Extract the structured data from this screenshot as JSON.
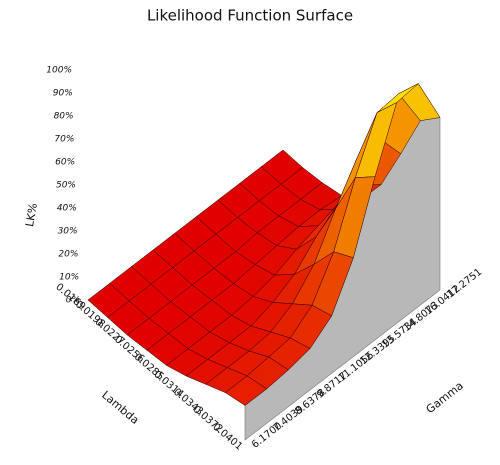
{
  "chart_data": {
    "type": "surface",
    "title": "Likelihood Function Surface",
    "x_label": "Lambda",
    "y_label": "Gamma",
    "z_label": "LK%",
    "x": [
      0.0169,
      0.0198,
      0.0227,
      0.0256,
      0.0285,
      0.0314,
      0.0343,
      0.0372,
      0.0401
    ],
    "y": [
      {
        "value": 6.17,
        "label": "6.1700"
      },
      7.4039,
      8.6378,
      9.8717,
      11.1056,
      12.3395,
      13.5734,
      14.8073,
      16.0412,
      17.2751
    ],
    "xlim": [
      0.0169,
      0.0401
    ],
    "ylim": [
      6.17,
      17.2751
    ],
    "zlim": [
      0,
      100
    ],
    "zticks": [
      {
        "value": 0,
        "label": "0%"
      },
      {
        "value": 10,
        "label": "10%"
      },
      {
        "value": 20,
        "label": "20%"
      },
      {
        "value": 30,
        "label": "30%"
      },
      {
        "value": 40,
        "label": "40%"
      },
      {
        "value": 50,
        "label": "50%"
      },
      {
        "value": 60,
        "label": "60%"
      },
      {
        "value": 70,
        "label": "70%"
      },
      {
        "value": 80,
        "label": "80%"
      },
      {
        "value": 90,
        "label": "90%"
      },
      {
        "value": 100,
        "label": "100%"
      }
    ],
    "z": [
      [
        0,
        0,
        0,
        0,
        0,
        0,
        0,
        0,
        0,
        0
      ],
      [
        0,
        0,
        0,
        0,
        0,
        0,
        0,
        0,
        0,
        0
      ],
      [
        0,
        0,
        0,
        0,
        0,
        0,
        1,
        1,
        1,
        1
      ],
      [
        1,
        1,
        1,
        1,
        1,
        2,
        3,
        4,
        4,
        3
      ],
      [
        2,
        2,
        2,
        2,
        3,
        5,
        9,
        12,
        12,
        9
      ],
      [
        5,
        5,
        5,
        5,
        8,
        13,
        22,
        29,
        30,
        23
      ],
      [
        9,
        9,
        9,
        10,
        15,
        25,
        42,
        57,
        58,
        44
      ],
      [
        13,
        13,
        14,
        15,
        22,
        38,
        63,
        84,
        85,
        66
      ],
      [
        15,
        15,
        16,
        18,
        25,
        43,
        71,
        96,
        97,
        75
      ]
    ],
    "wall_color": "#b8b8b8"
  }
}
